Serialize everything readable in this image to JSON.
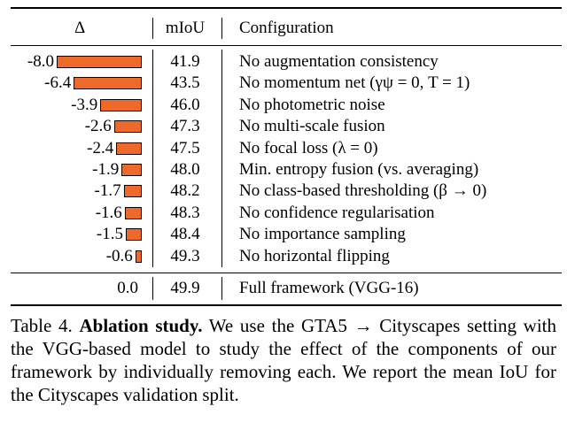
{
  "table": {
    "headers": {
      "delta": "Δ",
      "miou": "mIoU",
      "config": "Configuration"
    },
    "rows": [
      {
        "delta": "-8.0",
        "delta_value": -8.0,
        "miou": "41.9",
        "config": "No augmentation consistency"
      },
      {
        "delta": "-6.4",
        "delta_value": -6.4,
        "miou": "43.5",
        "config": "No momentum net (γψ = 0, T = 1)"
      },
      {
        "delta": "-3.9",
        "delta_value": -3.9,
        "miou": "46.0",
        "config": "No photometric noise"
      },
      {
        "delta": "-2.6",
        "delta_value": -2.6,
        "miou": "47.3",
        "config": "No multi-scale fusion"
      },
      {
        "delta": "-2.4",
        "delta_value": -2.4,
        "miou": "47.5",
        "config": "No focal loss (λ = 0)"
      },
      {
        "delta": "-1.9",
        "delta_value": -1.9,
        "miou": "48.0",
        "config": "Min. entropy fusion (vs. averaging)"
      },
      {
        "delta": "-1.7",
        "delta_value": -1.7,
        "miou": "48.2",
        "config": "No class-based thresholding (β → 0)"
      },
      {
        "delta": "-1.6",
        "delta_value": -1.6,
        "miou": "48.3",
        "config": "No confidence regularisation"
      },
      {
        "delta": "-1.5",
        "delta_value": -1.5,
        "miou": "48.4",
        "config": "No importance sampling"
      },
      {
        "delta": "-0.6",
        "delta_value": -0.6,
        "miou": "49.3",
        "config": "No horizontal flipping"
      }
    ],
    "full": {
      "delta": "0.0",
      "miou": "49.9",
      "config": "Full framework (VGG-16)"
    },
    "bar_color": "#ed6a2a"
  },
  "caption": {
    "label": "Table 4.",
    "title": "Ablation study.",
    "text": "We use the GTA5 → Cityscapes setting with the VGG-based model to study the effect of the components of our framework by individually removing each. We report the mean IoU for the Cityscapes validation split."
  }
}
